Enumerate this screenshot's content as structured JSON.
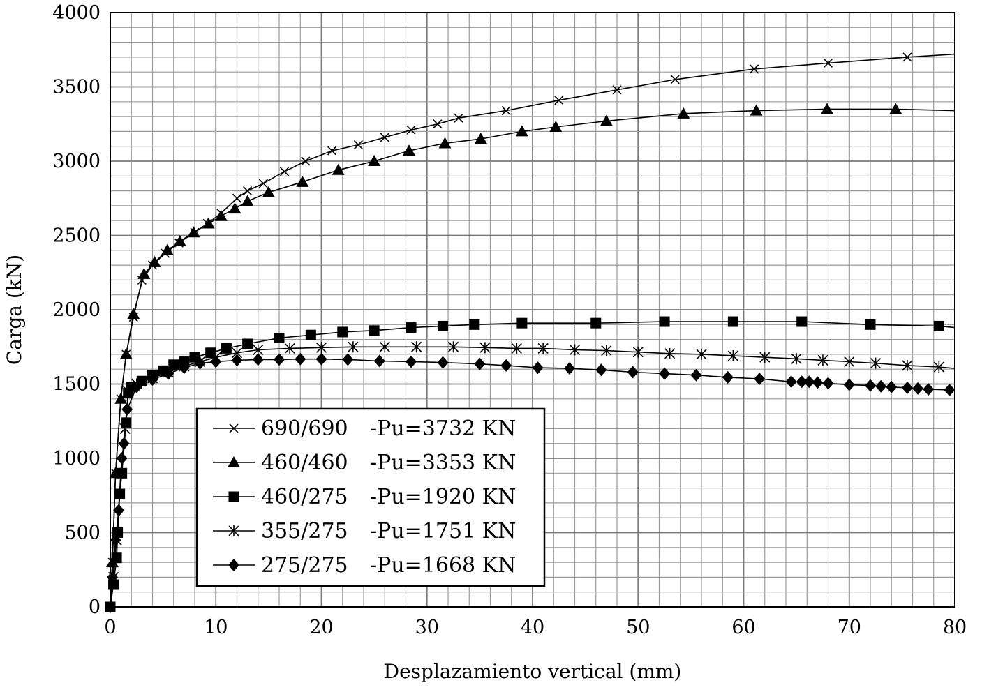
{
  "chart_data": {
    "type": "line",
    "xlabel": "Desplazamiento vertical (mm)",
    "ylabel": "Carga (kN)",
    "xlim": [
      0,
      80
    ],
    "ylim": [
      0,
      4000
    ],
    "xticks": [
      "0",
      "10",
      "20",
      "30",
      "40",
      "50",
      "60",
      "70",
      "80"
    ],
    "yticks": [
      "0",
      "500",
      "1000",
      "1500",
      "2000",
      "2500",
      "3000",
      "3500",
      "4000"
    ],
    "grid": true,
    "legend_position": "lower-left",
    "series": [
      {
        "name": "690/690",
        "pu_label": "-Pu=3732 KN",
        "marker": "x",
        "points": [
          [
            0,
            0
          ],
          [
            0.2,
            300
          ],
          [
            0.5,
            900
          ],
          [
            1,
            1400
          ],
          [
            1.5,
            1700
          ],
          [
            2.2,
            1950
          ],
          [
            3,
            2200
          ],
          [
            4,
            2300
          ],
          [
            5.2,
            2380
          ],
          [
            6.5,
            2450
          ],
          [
            8,
            2520
          ],
          [
            9.2,
            2580
          ],
          [
            10.5,
            2650
          ],
          [
            12,
            2750
          ],
          [
            13,
            2800
          ],
          [
            14.5,
            2850
          ],
          [
            16.5,
            2930
          ],
          [
            18.5,
            3000
          ],
          [
            21,
            3070
          ],
          [
            23.5,
            3110
          ],
          [
            26,
            3160
          ],
          [
            28.5,
            3210
          ],
          [
            31,
            3250
          ],
          [
            33,
            3290
          ],
          [
            37.5,
            3340
          ],
          [
            42.5,
            3410
          ],
          [
            48,
            3480
          ],
          [
            53.5,
            3550
          ],
          [
            61,
            3620
          ],
          [
            68,
            3660
          ],
          [
            75.5,
            3700
          ],
          [
            80,
            3720
          ]
        ]
      },
      {
        "name": "460/460",
        "pu_label": "-Pu=3353 KN",
        "marker": "triangle",
        "points": [
          [
            0,
            0
          ],
          [
            0.2,
            300
          ],
          [
            0.5,
            900
          ],
          [
            1,
            1400
          ],
          [
            1.5,
            1700
          ],
          [
            2.2,
            1970
          ],
          [
            3.2,
            2240
          ],
          [
            4.2,
            2320
          ],
          [
            5.4,
            2400
          ],
          [
            6.6,
            2460
          ],
          [
            7.9,
            2520
          ],
          [
            9.3,
            2580
          ],
          [
            10.5,
            2630
          ],
          [
            11.8,
            2680
          ],
          [
            13,
            2730
          ],
          [
            15,
            2790
          ],
          [
            18.2,
            2860
          ],
          [
            21.6,
            2940
          ],
          [
            25,
            3000
          ],
          [
            28.3,
            3070
          ],
          [
            31.7,
            3120
          ],
          [
            35.1,
            3150
          ],
          [
            39,
            3200
          ],
          [
            42.2,
            3230
          ],
          [
            47,
            3270
          ],
          [
            54.3,
            3320
          ],
          [
            61.2,
            3340
          ],
          [
            67.9,
            3350
          ],
          [
            74.4,
            3350
          ],
          [
            80,
            3340
          ]
        ]
      },
      {
        "name": "460/275",
        "pu_label": "-Pu=1920 KN",
        "marker": "square",
        "points": [
          [
            0,
            0
          ],
          [
            0.3,
            150
          ],
          [
            0.6,
            330
          ],
          [
            0.7,
            500
          ],
          [
            0.9,
            760
          ],
          [
            1.1,
            900
          ],
          [
            1.5,
            1240
          ],
          [
            1.7,
            1440
          ],
          [
            2,
            1480
          ],
          [
            3,
            1520
          ],
          [
            4,
            1560
          ],
          [
            5,
            1590
          ],
          [
            6,
            1630
          ],
          [
            7,
            1650
          ],
          [
            8,
            1680
          ],
          [
            9.5,
            1710
          ],
          [
            11,
            1740
          ],
          [
            13,
            1770
          ],
          [
            16,
            1810
          ],
          [
            19,
            1830
          ],
          [
            22,
            1850
          ],
          [
            25,
            1860
          ],
          [
            28.5,
            1880
          ],
          [
            31.5,
            1890
          ],
          [
            34.5,
            1900
          ],
          [
            39,
            1910
          ],
          [
            46,
            1910
          ],
          [
            52.5,
            1920
          ],
          [
            59,
            1920
          ],
          [
            65.5,
            1920
          ],
          [
            72,
            1900
          ],
          [
            78.5,
            1890
          ],
          [
            80,
            1880
          ]
        ]
      },
      {
        "name": "355/275",
        "pu_label": "-Pu=1751 KN",
        "marker": "star",
        "points": [
          [
            0,
            0
          ],
          [
            0.3,
            200
          ],
          [
            0.6,
            450
          ],
          [
            1,
            900
          ],
          [
            1.4,
            1200
          ],
          [
            1.7,
            1450
          ],
          [
            2.5,
            1500
          ],
          [
            4,
            1540
          ],
          [
            5.5,
            1580
          ],
          [
            7,
            1620
          ],
          [
            8.5,
            1650
          ],
          [
            10,
            1680
          ],
          [
            12,
            1710
          ],
          [
            14,
            1730
          ],
          [
            17,
            1740
          ],
          [
            20,
            1745
          ],
          [
            23,
            1750
          ],
          [
            26,
            1750
          ],
          [
            29,
            1750
          ],
          [
            32.5,
            1750
          ],
          [
            35.5,
            1745
          ],
          [
            38.5,
            1740
          ],
          [
            41,
            1740
          ],
          [
            44,
            1730
          ],
          [
            47,
            1725
          ],
          [
            50,
            1715
          ],
          [
            53,
            1705
          ],
          [
            56,
            1700
          ],
          [
            59,
            1690
          ],
          [
            62,
            1680
          ],
          [
            65,
            1670
          ],
          [
            67.5,
            1660
          ],
          [
            70,
            1650
          ],
          [
            72.5,
            1640
          ],
          [
            75.5,
            1625
          ],
          [
            78.5,
            1615
          ],
          [
            80,
            1605
          ]
        ]
      },
      {
        "name": "275/275",
        "pu_label": "-Pu=1668 KN",
        "marker": "diamond",
        "points": [
          [
            0,
            0
          ],
          [
            0.2,
            200
          ],
          [
            0.5,
            450
          ],
          [
            0.8,
            650
          ],
          [
            1.1,
            1000
          ],
          [
            1.3,
            1100
          ],
          [
            1.6,
            1330
          ],
          [
            2.5,
            1480
          ],
          [
            4,
            1530
          ],
          [
            5.5,
            1570
          ],
          [
            7,
            1610
          ],
          [
            8.5,
            1640
          ],
          [
            10,
            1650
          ],
          [
            12,
            1660
          ],
          [
            14,
            1665
          ],
          [
            16,
            1665
          ],
          [
            18,
            1668
          ],
          [
            20,
            1668
          ],
          [
            22.5,
            1665
          ],
          [
            25.5,
            1655
          ],
          [
            28.5,
            1650
          ],
          [
            31.5,
            1645
          ],
          [
            35,
            1635
          ],
          [
            37.5,
            1625
          ],
          [
            40.5,
            1610
          ],
          [
            43.5,
            1605
          ],
          [
            46.5,
            1595
          ],
          [
            49.5,
            1580
          ],
          [
            52.5,
            1570
          ],
          [
            55.5,
            1560
          ],
          [
            58.5,
            1545
          ],
          [
            61.5,
            1535
          ],
          [
            64.5,
            1515
          ],
          [
            65.5,
            1515
          ],
          [
            66.2,
            1515
          ],
          [
            67,
            1510
          ],
          [
            68,
            1505
          ],
          [
            70,
            1495
          ],
          [
            72,
            1490
          ],
          [
            73,
            1485
          ],
          [
            74,
            1480
          ],
          [
            75.5,
            1475
          ],
          [
            76.5,
            1470
          ],
          [
            77.5,
            1465
          ],
          [
            79.5,
            1460
          ],
          [
            80,
            1455
          ]
        ]
      }
    ]
  }
}
